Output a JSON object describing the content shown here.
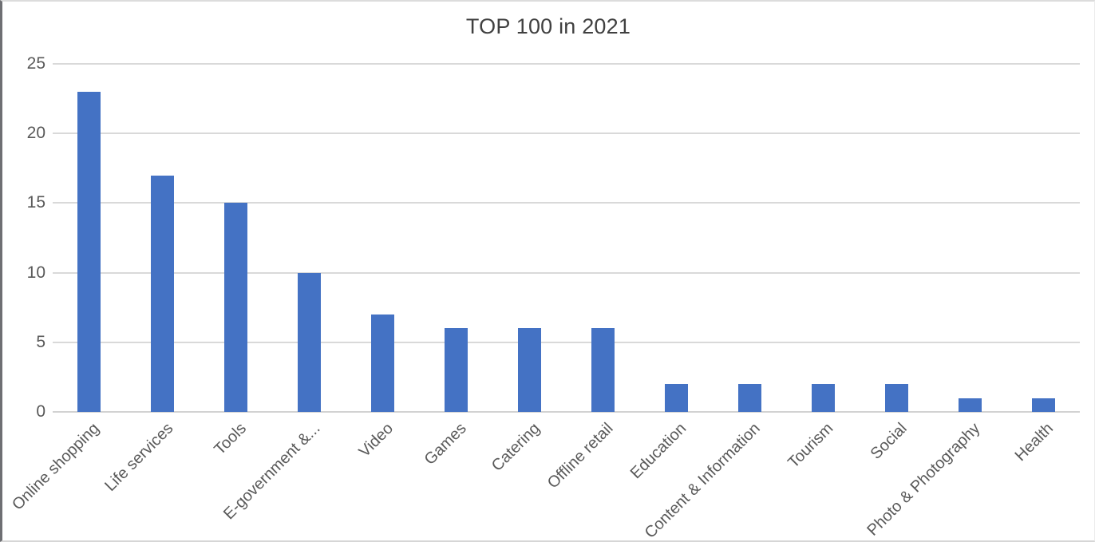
{
  "chart_data": {
    "type": "bar",
    "title": "TOP 100 in 2021",
    "categories": [
      "Online shopping",
      "Life services",
      "Tools",
      "E-government &...",
      "Video",
      "Games",
      "Catering",
      "Offline retail",
      "Education",
      "Content & Information",
      "Tourism",
      "Social",
      "Photo & Photography",
      "Health"
    ],
    "values": [
      23,
      17,
      15,
      10,
      7,
      6,
      6,
      6,
      2,
      2,
      2,
      2,
      1,
      1
    ],
    "xlabel": "",
    "ylabel": "",
    "ylim": [
      0,
      25
    ],
    "yticks": [
      0,
      5,
      10,
      15,
      20,
      25
    ],
    "grid": "horizontal",
    "legend": false,
    "x_label_rotation_deg": -45,
    "bar_color": "#4472C4",
    "gridline_color": "#D9D9D9",
    "axis_line_color": "#D2D2D2",
    "tick_text_color": "#595959",
    "title_color": "#404040"
  }
}
